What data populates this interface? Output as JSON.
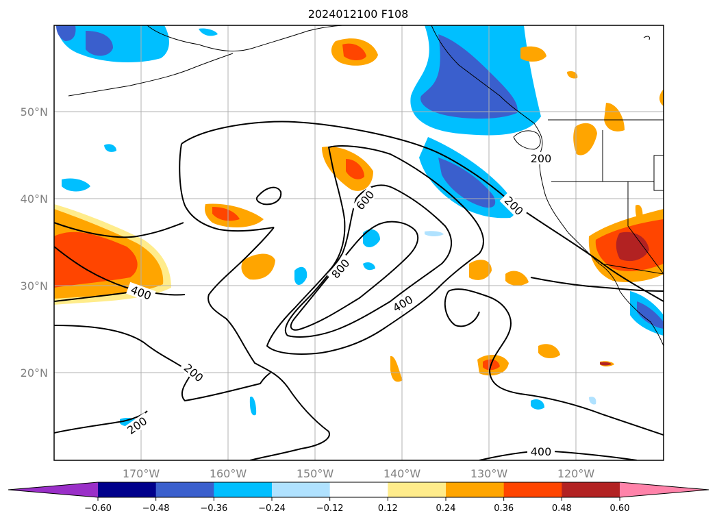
{
  "title": "2024012100 F108",
  "map": {
    "lat_ticks": [
      {
        "value": 50,
        "label": "50°N"
      },
      {
        "value": 40,
        "label": "40°N"
      },
      {
        "value": 30,
        "label": "30°N"
      },
      {
        "value": 20,
        "label": "20°N"
      }
    ],
    "lon_ticks": [
      {
        "value": -170,
        "label": "170°W"
      },
      {
        "value": -160,
        "label": "160°W"
      },
      {
        "value": -150,
        "label": "150°W"
      },
      {
        "value": -140,
        "label": "140°W"
      },
      {
        "value": -130,
        "label": "130°W"
      },
      {
        "value": -120,
        "label": "120°W"
      }
    ],
    "extent": {
      "lon_min": -180,
      "lon_max": -110,
      "lat_min": 10,
      "lat_max": 60
    },
    "contour_labels": [
      "200",
      "200",
      "200",
      "200",
      "400",
      "400",
      "400",
      "600",
      "800"
    ]
  },
  "colorbar": {
    "ticks": [
      "−0.60",
      "−0.48",
      "−0.36",
      "−0.24",
      "−0.12",
      "0.12",
      "0.24",
      "0.36",
      "0.48",
      "0.60"
    ],
    "colors": [
      "#9a2fc8",
      "#00008b",
      "#3a5fcd",
      "#00bfff",
      "#b0e2ff",
      "#ffffff",
      "#ffec8b",
      "#ffa500",
      "#ff4500",
      "#b22222",
      "#ff83aa"
    ]
  }
}
